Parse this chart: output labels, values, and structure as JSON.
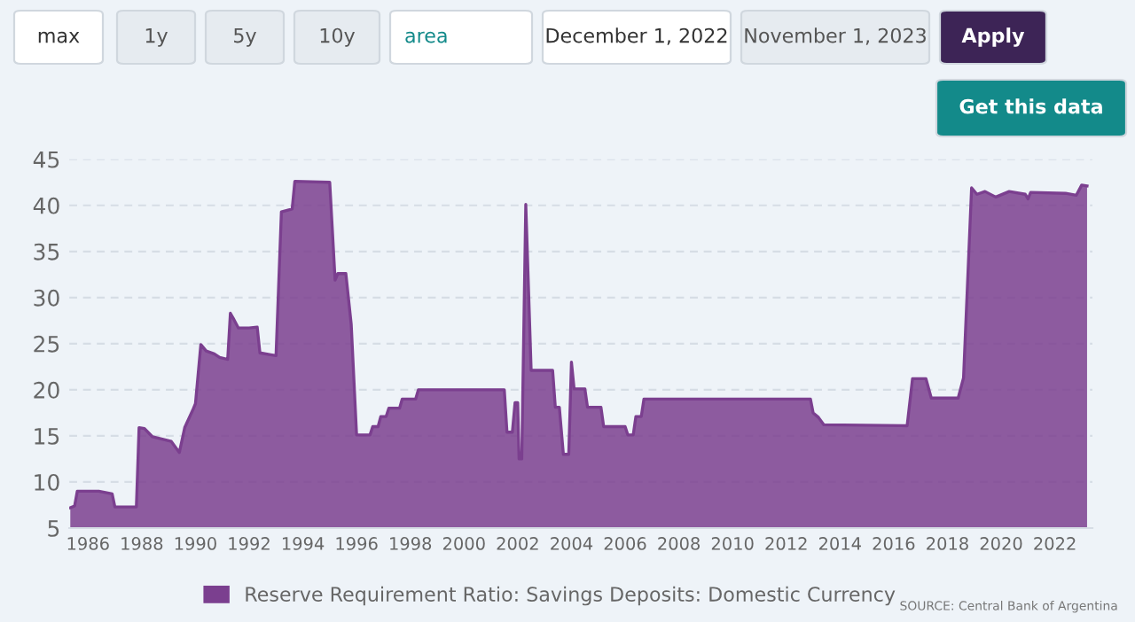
{
  "chart_data": {
    "type": "area",
    "x": [
      1985.34,
      1985.5,
      1985.6,
      1986.4,
      1986.9,
      1987.0,
      1987.8,
      1987.9,
      1988.1,
      1988.4,
      1989.1,
      1989.4,
      1989.6,
      1989.9,
      1990.0,
      1990.2,
      1990.4,
      1990.7,
      1990.9,
      1991.2,
      1991.3,
      1991.4,
      1991.6,
      1992.0,
      1992.3,
      1992.4,
      1992.8,
      1993.0,
      1993.2,
      1993.6,
      1993.7,
      1995.0,
      1995.2,
      1995.3,
      1995.6,
      1995.8,
      1996.0,
      1996.5,
      1996.6,
      1996.8,
      1996.9,
      1997.1,
      1997.2,
      1997.6,
      1997.7,
      1998.2,
      1998.3,
      2001.5,
      2001.6,
      2001.8,
      2001.9,
      2002.0,
      2002.05,
      2002.15,
      2002.3,
      2002.5,
      2003.3,
      2003.4,
      2003.55,
      2003.7,
      2003.9,
      2004.0,
      2004.1,
      2004.5,
      2004.6,
      2005.1,
      2005.2,
      2006.0,
      2006.1,
      2006.3,
      2006.4,
      2006.6,
      2006.7,
      2012.9,
      2013.0,
      2013.2,
      2013.4,
      2016.5,
      2016.7,
      2017.2,
      2017.4,
      2018.4,
      2018.6,
      2018.9,
      2019.1,
      2019.4,
      2019.8,
      2020.3,
      2020.9,
      2021.0,
      2021.1,
      2022.4,
      2022.8,
      2023.0,
      2023.2
    ],
    "series": [
      {
        "name": "Reserve Requirement Ratio: Savings Deposits: Domestic Currency",
        "color": "#7b3f8f",
        "values": [
          7.2,
          7.4,
          9.0,
          9.0,
          8.7,
          7.3,
          7.3,
          15.9,
          15.8,
          14.9,
          14.4,
          13.2,
          15.9,
          17.8,
          18.5,
          24.9,
          24.2,
          23.9,
          23.5,
          23.3,
          28.3,
          27.8,
          26.7,
          26.7,
          26.8,
          24.0,
          23.8,
          23.7,
          39.3,
          39.6,
          42.6,
          42.5,
          31.9,
          32.6,
          32.6,
          27.1,
          15.1,
          15.1,
          16.0,
          16.0,
          17.1,
          17.1,
          18.0,
          18.0,
          19.0,
          19.0,
          20.0,
          20.0,
          15.4,
          15.4,
          18.6,
          18.6,
          12.5,
          12.5,
          40.1,
          22.1,
          22.1,
          18.1,
          18.1,
          13.0,
          13.0,
          23.0,
          20.1,
          20.1,
          18.1,
          18.1,
          16.0,
          16.0,
          15.1,
          15.1,
          17.1,
          17.1,
          19.0,
          19.0,
          17.5,
          17.0,
          16.2,
          16.1,
          21.2,
          21.2,
          19.1,
          19.1,
          21.3,
          41.9,
          41.2,
          41.5,
          40.9,
          41.5,
          41.2,
          40.7,
          41.4,
          41.3,
          41.1,
          42.2,
          42.1
        ]
      }
    ],
    "xlim": [
      1985.3,
      2023.4
    ],
    "xticks": [
      1986,
      1988,
      1990,
      1992,
      1994,
      1996,
      1998,
      2000,
      2002,
      2004,
      2006,
      2008,
      2010,
      2012,
      2014,
      2016,
      2018,
      2020,
      2022
    ],
    "ylim": [
      5,
      45
    ],
    "yticks": [
      5,
      10,
      15,
      20,
      25,
      30,
      35,
      40,
      45
    ],
    "grid": "y",
    "legend": "bottom",
    "annotations": [
      "max",
      "1y",
      "5y",
      "10y",
      "area",
      "December 1, 2022",
      "November 1, 2023",
      "Apply",
      "Get this data",
      "SOURCE: Central Bank of Argentina"
    ]
  }
}
